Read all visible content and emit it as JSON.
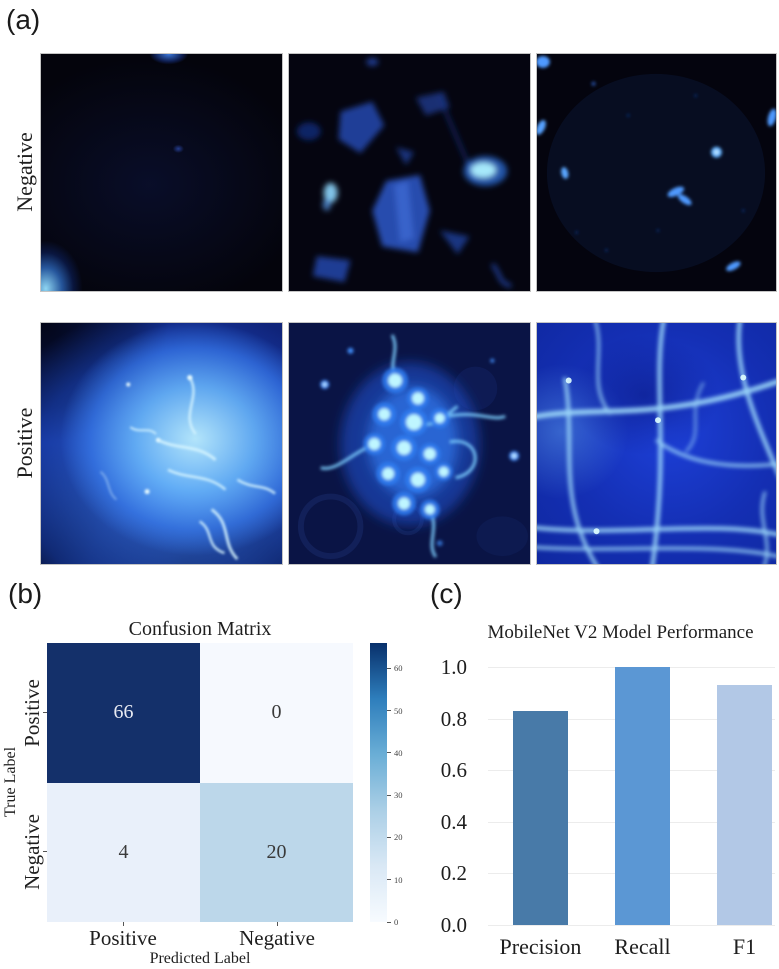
{
  "panels": {
    "a": {
      "label": "(a)",
      "rows": [
        {
          "label": "Negative"
        },
        {
          "label": "Positive"
        }
      ]
    },
    "b": {
      "label": "(b)"
    },
    "c": {
      "label": "(c)"
    }
  },
  "chart_data": [
    {
      "type": "heatmap",
      "title": "Confusion Matrix",
      "xlabel": "Predicted Label",
      "ylabel": "True Label",
      "x_categories": [
        "Positive",
        "Negative"
      ],
      "y_categories": [
        "Positive",
        "Negative"
      ],
      "values": [
        [
          66,
          0
        ],
        [
          4,
          20
        ]
      ],
      "cell_colors": [
        [
          "#14306a",
          "#f6f9fe"
        ],
        [
          "#e9f0fa",
          "#bcd7ea"
        ]
      ],
      "cell_text_colors": [
        [
          "#e8eaf2",
          "#3a3a3a"
        ],
        [
          "#3a3a3a",
          "#3a3a3a"
        ]
      ],
      "colormap": "Blues",
      "colorbar": {
        "vmin": 0,
        "vmax": 66,
        "ticks": [
          0,
          10,
          20,
          30,
          40,
          50,
          60
        ],
        "gradient": [
          "#f7fbff",
          "#d9e8f5",
          "#abcfe6",
          "#6aaed6",
          "#2e7ebc",
          "#08306b"
        ]
      }
    },
    {
      "type": "bar",
      "title": "MobileNet V2 Model Performance",
      "categories": [
        "Precision",
        "Recall",
        "F1"
      ],
      "values": [
        0.83,
        1.0,
        0.93
      ],
      "bar_colors": [
        "#487aa8",
        "#5b97d4",
        "#b2c8e6"
      ],
      "xlabel": "",
      "ylabel": "",
      "ylim": [
        0,
        1.0
      ],
      "yticks": [
        0,
        0.2,
        0.4,
        0.6,
        0.8,
        1.0
      ],
      "grid": true,
      "legend": false
    }
  ]
}
